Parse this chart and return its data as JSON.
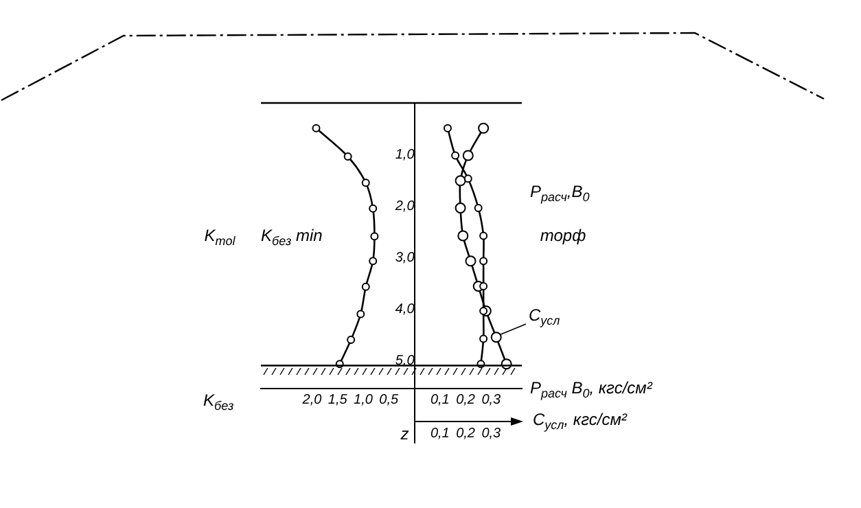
{
  "chart_data": {
    "type": "line",
    "ylabel": "z",
    "xlabel": "K$_{без}$",
    "x2label": "P$_{расч}$ B$_{0}$, кгс/см²",
    "ylim": [
      6.6,
      0
    ],
    "yticks": [
      {
        "value": 1,
        "label": "1,0"
      },
      {
        "value": 2,
        "label": "2,0"
      },
      {
        "value": 3,
        "label": "3,0"
      },
      {
        "value": 4,
        "label": "4,0"
      },
      {
        "value": 5,
        "label": "5,0"
      }
    ],
    "xlim": [
      3,
      -2.1
    ],
    "xticks": [
      {
        "value": 2,
        "label": "2,0"
      },
      {
        "value": 1.5,
        "label": "1,5"
      },
      {
        "value": 1,
        "label": "1,0"
      },
      {
        "value": 0.5,
        "label": "0,5"
      }
    ],
    "x2lim": [
      -0.6,
      0.42
    ],
    "x2ticks": [
      {
        "value": 0.1,
        "label": "0,1"
      },
      {
        "value": 0.2,
        "label": "0,2"
      },
      {
        "value": 0.3,
        "label": "0,3"
      }
    ],
    "marker": "circle",
    "grid": false,
    "ref_lines": [
      {
        "axis": "y",
        "value": 0
      },
      {
        "axis": "y",
        "value": 5.1
      }
    ],
    "annotations": [
      "K$_{mol}$",
      "торф",
      "C$_{усл}$, кгс/см²"
    ],
    "series": [
      {
        "name": "K$_{без}$ min",
        "color": "#000000",
        "x": [
          1.92,
          1.3,
          0.95,
          0.81,
          0.78,
          0.81,
          0.95,
          1.05,
          1.24,
          1.46
        ],
        "values": [
          0.49,
          1.04,
          1.55,
          2.05,
          2.59,
          3.07,
          3.57,
          4.1,
          4.6,
          5.07
        ]
      },
      {
        "name": "P$_{расч}$,B$_{0}$",
        "color": "#000000",
        "axis": "x2",
        "x": [
          0.13,
          0.16,
          0.21,
          0.25,
          0.27,
          0.27,
          0.27,
          0.27,
          0.27,
          0.26
        ],
        "values": [
          0.49,
          1.02,
          1.47,
          2.04,
          2.58,
          3.07,
          3.56,
          4.04,
          4.58,
          5.07
        ]
      },
      {
        "name": "C$_{усл}$",
        "color": "#000000",
        "axis": "x2",
        "x": [
          0.27,
          0.21,
          0.18,
          0.18,
          0.19,
          0.22,
          0.25,
          0.28,
          0.32,
          0.36
        ],
        "values": [
          0.49,
          1.02,
          1.51,
          2.04,
          2.58,
          3.07,
          3.56,
          4.04,
          4.55,
          5.07
        ]
      }
    ]
  }
}
